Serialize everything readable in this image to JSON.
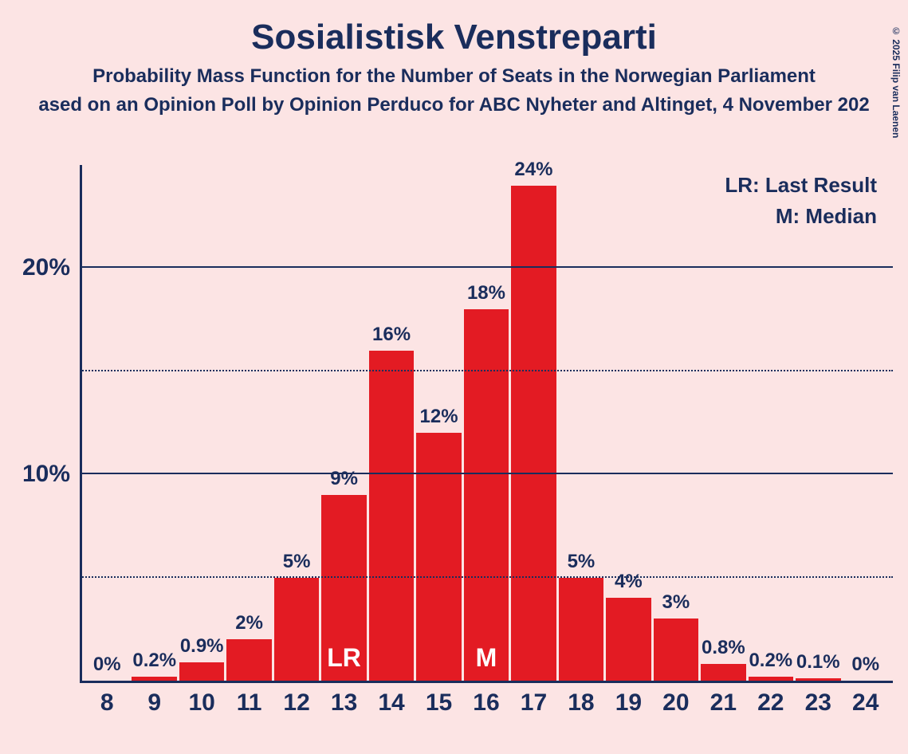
{
  "title": "Sosialistisk Venstreparti",
  "subtitle": "Probability Mass Function for the Number of Seats in the Norwegian Parliament",
  "subtitle2": "ased on an Opinion Poll by Opinion Perduco for ABC Nyheter and Altinget, 4 November 202",
  "copyright": "© 2025 Filip van Laenen",
  "legend": {
    "lr": "LR: Last Result",
    "m": "M: Median"
  },
  "chart": {
    "type": "bar",
    "bar_color": "#e31b23",
    "background_color": "#fce4e4",
    "axis_color": "#1a2d5c",
    "text_color": "#1a2d5c",
    "annot_color": "#ffffff",
    "title_fontsize": 44,
    "subtitle_fontsize": 24,
    "axis_label_fontsize": 30,
    "bar_label_fontsize": 24,
    "annot_fontsize": 32,
    "y_max_value": 25,
    "y_ticks": [
      {
        "value": 5,
        "style": "dotted",
        "label": ""
      },
      {
        "value": 10,
        "style": "solid",
        "label": "10%"
      },
      {
        "value": 15,
        "style": "dotted",
        "label": ""
      },
      {
        "value": 20,
        "style": "solid",
        "label": "20%"
      }
    ],
    "bars": [
      {
        "x": "8",
        "value": 0.0,
        "label": "0%"
      },
      {
        "x": "9",
        "value": 0.2,
        "label": "0.2%"
      },
      {
        "x": "10",
        "value": 0.9,
        "label": "0.9%"
      },
      {
        "x": "11",
        "value": 2.0,
        "label": "2%"
      },
      {
        "x": "12",
        "value": 5.0,
        "label": "5%"
      },
      {
        "x": "13",
        "value": 9.0,
        "label": "9%",
        "annot": "LR"
      },
      {
        "x": "14",
        "value": 16.0,
        "label": "16%"
      },
      {
        "x": "15",
        "value": 12.0,
        "label": "12%"
      },
      {
        "x": "16",
        "value": 18.0,
        "label": "18%",
        "annot": "M"
      },
      {
        "x": "17",
        "value": 24.0,
        "label": "24%"
      },
      {
        "x": "18",
        "value": 5.0,
        "label": "5%"
      },
      {
        "x": "19",
        "value": 4.0,
        "label": "4%"
      },
      {
        "x": "20",
        "value": 3.0,
        "label": "3%"
      },
      {
        "x": "21",
        "value": 0.8,
        "label": "0.8%"
      },
      {
        "x": "22",
        "value": 0.2,
        "label": "0.2%"
      },
      {
        "x": "23",
        "value": 0.1,
        "label": "0.1%"
      },
      {
        "x": "24",
        "value": 0.0,
        "label": "0%"
      }
    ]
  }
}
